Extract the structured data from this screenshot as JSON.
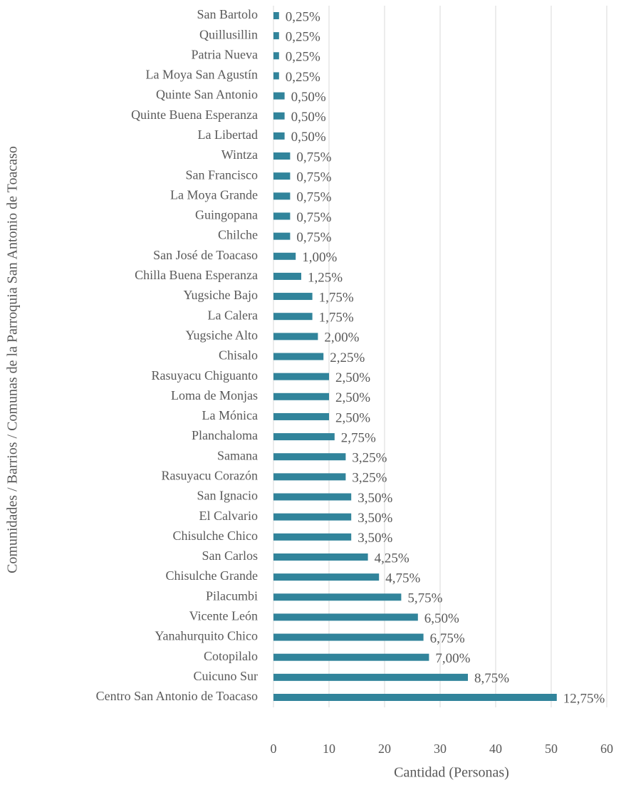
{
  "chart_data": {
    "type": "hbar",
    "x_label": "Cantidad (Personas)",
    "y_label": "Comunidades / Barrios / Comunas de la Parroquia San Antonio de Toacaso",
    "categories": [
      "San Bartolo",
      "Quillusillin",
      "Patria Nueva",
      "La Moya San Agustín",
      "Quinte San Antonio",
      "Quinte Buena Esperanza",
      "La Libertad",
      "Wintza",
      "San Francisco",
      "La Moya Grande",
      "Guingopana",
      "Chilche",
      "San José de Toacaso",
      "Chilla Buena Esperanza",
      "Yugsiche Bajo",
      "La Calera",
      "Yugsiche Alto",
      "Chisalo",
      "Rasuyacu Chiguanto",
      "Loma de Monjas",
      "La Mónica",
      "Planchaloma",
      "Samana",
      "Rasuyacu Corazón",
      "San Ignacio",
      "El Calvario",
      "Chisulche Chico",
      "San Carlos",
      "Chisulche Grande",
      "Pilacumbi",
      "Vicente León",
      "Yanahurquito Chico",
      "Cotopilalo",
      "Cuicuno Sur",
      "Centro San Antonio de Toacaso"
    ],
    "values": [
      1,
      1,
      1,
      1,
      2,
      2,
      2,
      3,
      3,
      3,
      3,
      3,
      4,
      5,
      7,
      7,
      8,
      9,
      10,
      10,
      10,
      11,
      13,
      13,
      14,
      14,
      14,
      17,
      19,
      23,
      26,
      27,
      28,
      35,
      51
    ],
    "percent_labels": [
      "0,25%",
      "0,25%",
      "0,25%",
      "0,25%",
      "0,50%",
      "0,50%",
      "0,50%",
      "0,75%",
      "0,75%",
      "0,75%",
      "0,75%",
      "0,75%",
      "1,00%",
      "1,25%",
      "1,75%",
      "1,75%",
      "2,00%",
      "2,25%",
      "2,50%",
      "2,50%",
      "2,50%",
      "2,75%",
      "3,25%",
      "3,25%",
      "3,50%",
      "3,50%",
      "3,50%",
      "4,25%",
      "4,75%",
      "5,75%",
      "6,50%",
      "6,75%",
      "7,00%",
      "8,75%",
      "12,75%"
    ],
    "color": "#31849b",
    "xlim": [
      0,
      60
    ],
    "xticks": [
      0,
      10,
      20,
      30,
      40,
      50,
      60
    ],
    "grid": true
  }
}
